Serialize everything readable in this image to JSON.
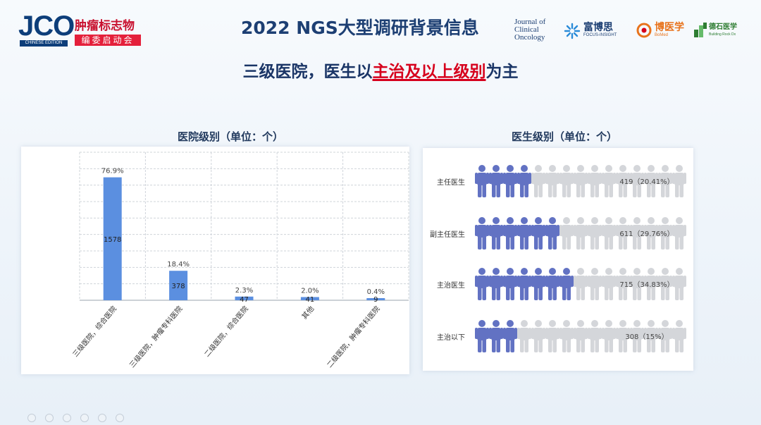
{
  "header": {
    "jco_logo": "JCO",
    "jco_edition": "CHINESE EDITION",
    "jco_cn_title": "肿瘤标志物",
    "jco_cn_sub": "编委启动会",
    "title": "2022 NGS大型调研背景信息",
    "journal_lines": [
      "Journal of",
      "Clinical",
      "Oncology"
    ],
    "partners": [
      {
        "name": "富博思",
        "sub": "FOCUS-INSIGHT",
        "color": "#1d3f73"
      },
      {
        "name": "博医学",
        "sub": "BoMed",
        "color": "#e8731c"
      },
      {
        "name": "德石医学",
        "sub": "Building Rock Dx",
        "color": "#2e7d32"
      }
    ]
  },
  "subtitle": {
    "before": "三级医院，医生以",
    "highlight": "主治及以上级别",
    "after": "为主"
  },
  "chart_data": [
    {
      "type": "bar",
      "title": "医院级别（单位：个）",
      "categories": [
        "三级医院，综合医院",
        "三级医院，肿瘤专科医院",
        "二级医院，综合医院",
        "其他",
        "二级医院，肿瘤专科医院"
      ],
      "values": [
        1578,
        378,
        47,
        41,
        9
      ],
      "percent_labels": [
        "76.9%",
        "18.4%",
        "2.3%",
        "2.0%",
        "0.4%"
      ],
      "ylim": [
        0,
        1900
      ],
      "grid": true,
      "bar_color": "#5b8fe0"
    },
    {
      "type": "bar",
      "title": "医生级别（单位：个）",
      "categories": [
        "主任医生",
        "副主任医生",
        "主治医生",
        "主治以下"
      ],
      "values": [
        419,
        611,
        715,
        308
      ],
      "value_labels": [
        "419（20.41%）",
        "611（29.76%）",
        "715（34.83%）",
        "308（15%）"
      ],
      "icons_total": 15,
      "icons_filled": [
        4,
        6,
        7,
        3
      ],
      "fill_fraction": [
        0.2041,
        0.2976,
        0.3483,
        0.15
      ],
      "filled_color": "#6272c3",
      "empty_color": "#d4d6da"
    }
  ]
}
